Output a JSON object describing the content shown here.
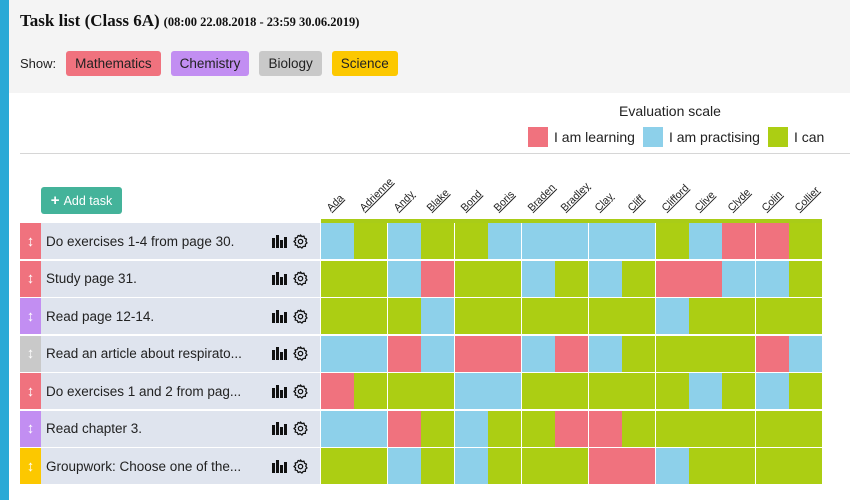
{
  "header": {
    "title": "Task list (Class 6A)",
    "date_range": "(08:00 22.08.2018 - 23:59 30.06.2019)"
  },
  "filter": {
    "show_label": "Show:",
    "subjects": [
      {
        "label": "Mathematics",
        "color": "#f0727e"
      },
      {
        "label": "Chemistry",
        "color": "#c28ef2"
      },
      {
        "label": "Biology",
        "color": "#c9c9c9"
      },
      {
        "label": "Science",
        "color": "#fcc800"
      }
    ]
  },
  "scale": {
    "title": "Evaluation scale",
    "items": [
      {
        "label": "I am learning",
        "color": "#f0727e"
      },
      {
        "label": "I am practising",
        "color": "#8dd0ea"
      },
      {
        "label": "I can",
        "color": "#acce13"
      }
    ]
  },
  "add_task_label": "Add task",
  "students": [
    "Ada",
    "Adrienne",
    "Andy",
    "Blake",
    "Bond",
    "Boris",
    "Braden",
    "Bradley",
    "Clay",
    "Cliff",
    "Clifford",
    "Clive",
    "Clyde",
    "Colin",
    "Collier"
  ],
  "tasks": [
    {
      "text": "Do exercises 1-4 from page 30.",
      "subject_color": "#f0727e"
    },
    {
      "text": "Study page 31.",
      "subject_color": "#f0727e"
    },
    {
      "text": "Read page 12-14.",
      "subject_color": "#c28ef2"
    },
    {
      "text": "Read an article about respirato...",
      "subject_color": "#c9c9c9"
    },
    {
      "text": "Do exercises 1 and 2 from pag...",
      "subject_color": "#f0727e"
    },
    {
      "text": "Read chapter 3.",
      "subject_color": "#c28ef2"
    },
    {
      "text": "Groupwork: Choose one of the...",
      "subject_color": "#fcc800"
    }
  ],
  "evaluations": [
    [
      "practising",
      "can",
      "practising",
      "can",
      "can",
      "practising",
      "practising",
      "practising",
      "practising",
      "practising",
      "can",
      "practising",
      "learning",
      "learning",
      "can"
    ],
    [
      "can",
      "can",
      "practising",
      "learning",
      "can",
      "can",
      "practising",
      "can",
      "practising",
      "can",
      "learning",
      "learning",
      "practising",
      "practising",
      "can"
    ],
    [
      "can",
      "can",
      "can",
      "practising",
      "can",
      "can",
      "can",
      "can",
      "can",
      "can",
      "practising",
      "can",
      "can",
      "can",
      "can"
    ],
    [
      "practising",
      "practising",
      "learning",
      "practising",
      "learning",
      "learning",
      "practising",
      "learning",
      "practising",
      "can",
      "can",
      "can",
      "can",
      "learning",
      "practising"
    ],
    [
      "learning",
      "can",
      "can",
      "can",
      "practising",
      "practising",
      "can",
      "can",
      "can",
      "can",
      "can",
      "practising",
      "can",
      "practising",
      "can"
    ],
    [
      "practising",
      "practising",
      "learning",
      "can",
      "practising",
      "can",
      "can",
      "learning",
      "learning",
      "can",
      "can",
      "can",
      "can",
      "can",
      "can"
    ],
    [
      "can",
      "can",
      "practising",
      "can",
      "practising",
      "can",
      "can",
      "can",
      "learning",
      "learning",
      "practising",
      "can",
      "can",
      "can",
      "can"
    ]
  ],
  "eval_colors": {
    "learning": "#f0727e",
    "practising": "#8dd0ea",
    "can": "#acce13"
  }
}
